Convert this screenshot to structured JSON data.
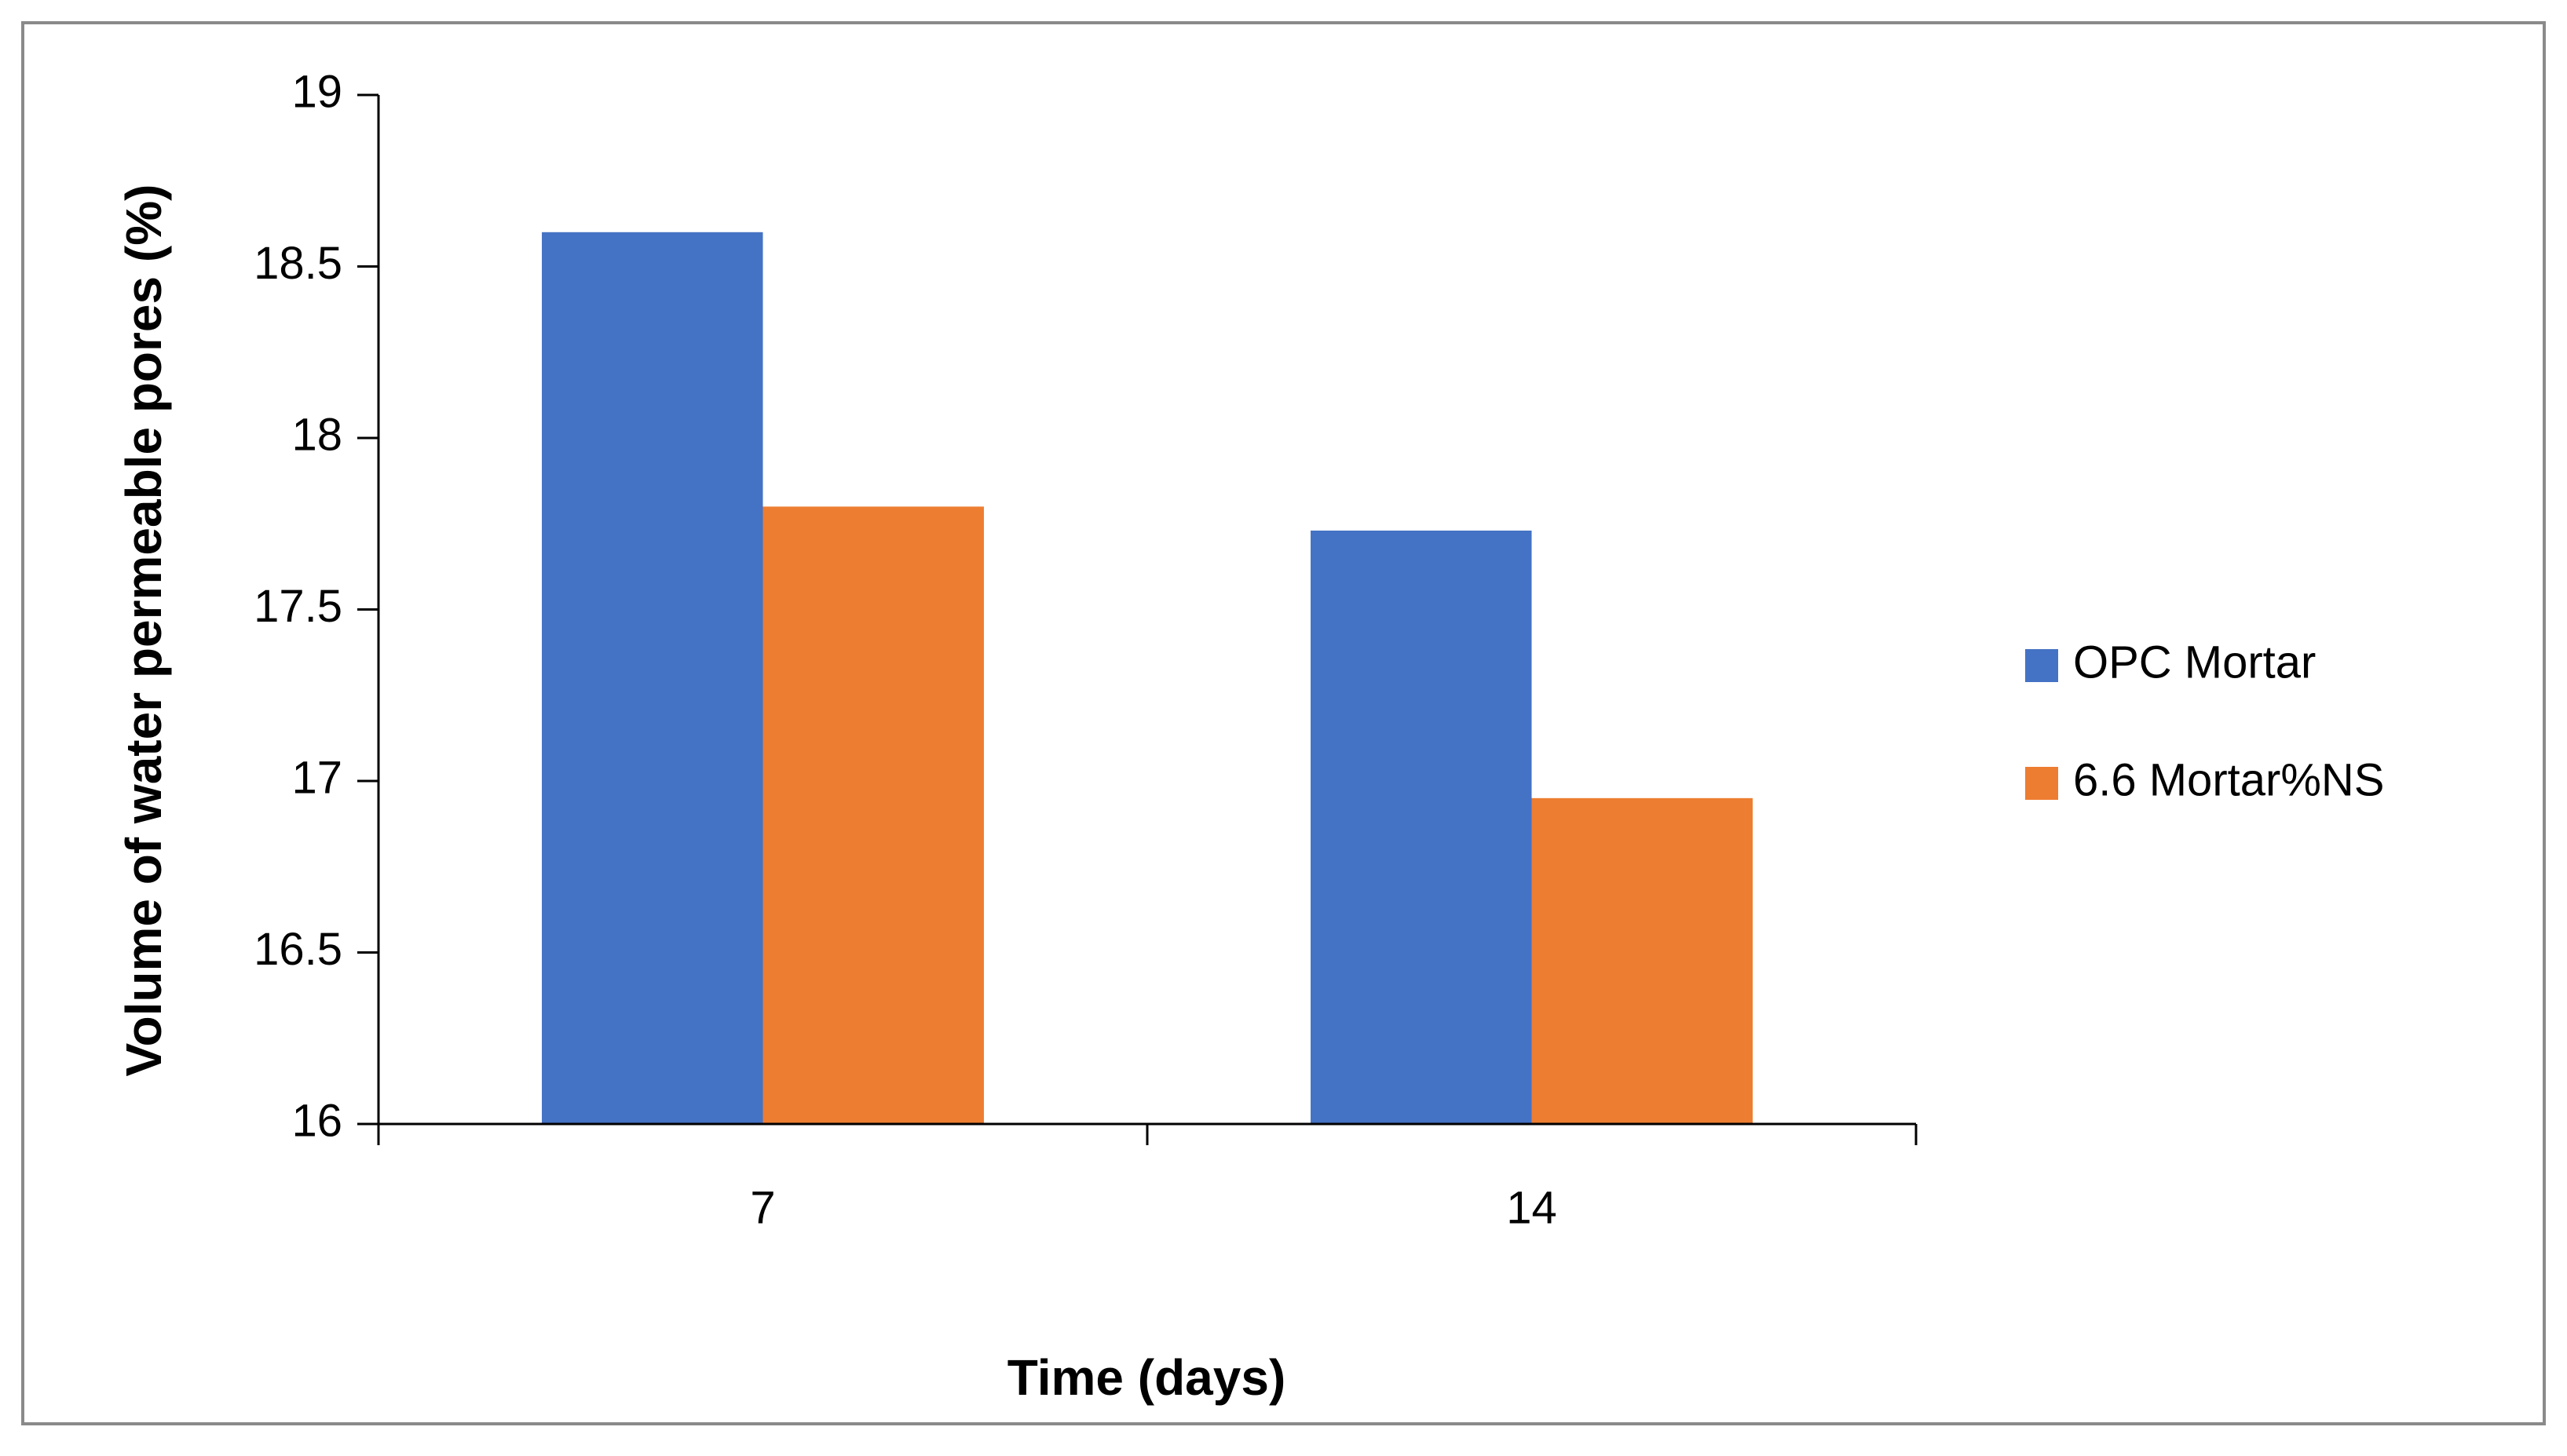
{
  "chart_data": {
    "type": "bar",
    "x_label": "Time (days)",
    "y_label": "Volume of water permeable pores (%)",
    "categories": [
      "7",
      "14"
    ],
    "series": [
      {
        "name": "OPC Mortar",
        "color": "#4472c4",
        "values": [
          18.6,
          17.73
        ]
      },
      {
        "name": "6.6 Mortar%NS",
        "color": "#ed7d31",
        "values": [
          17.8,
          16.95
        ]
      }
    ],
    "ylim": [
      16,
      19
    ],
    "yticks": [
      16,
      16.5,
      17,
      17.5,
      18,
      18.5,
      19
    ],
    "grid": false,
    "legend": "right"
  }
}
